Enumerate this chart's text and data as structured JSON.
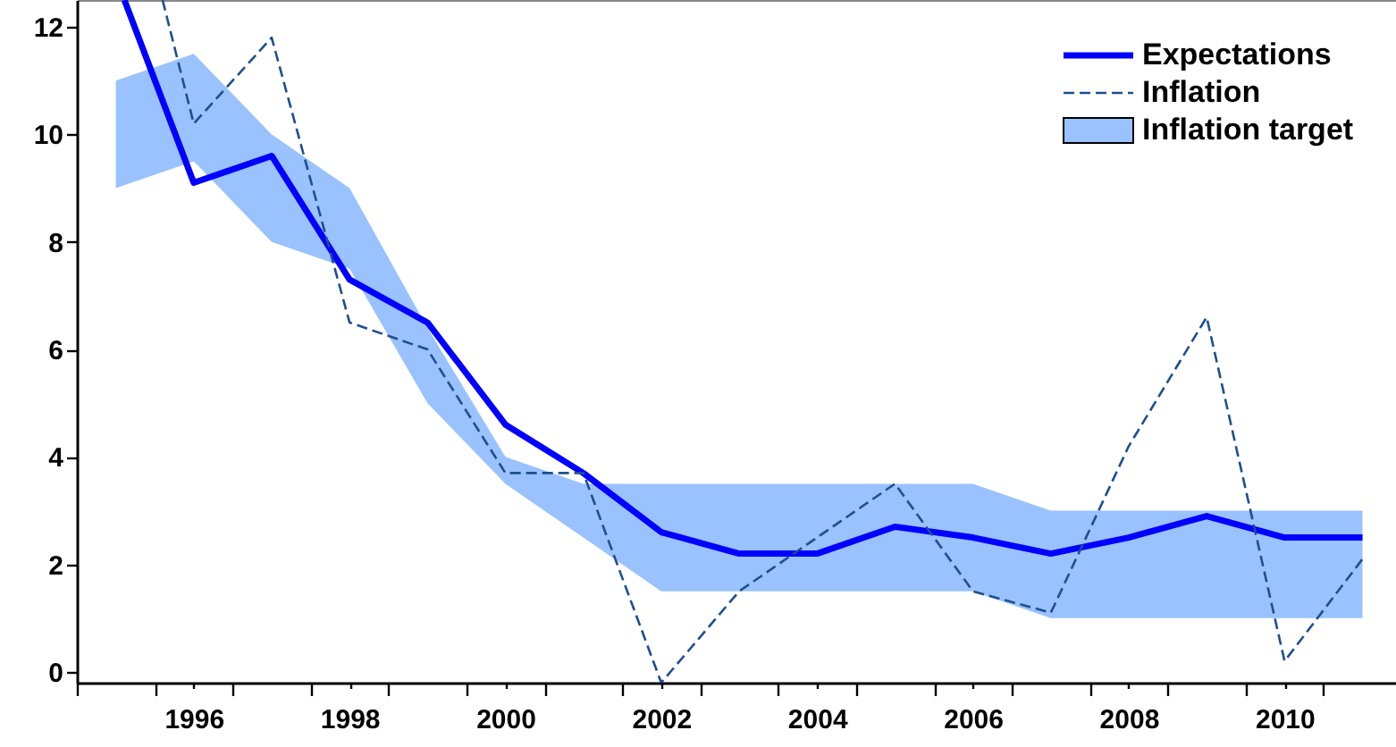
{
  "chart_data": {
    "type": "line",
    "xlim": [
      1994.5,
      2011.43
    ],
    "ylim": [
      -0.2,
      12.5
    ],
    "xticks": [
      {
        "value": 1994.5,
        "label": null
      },
      {
        "value": 1995.5,
        "label": null
      },
      1996,
      {
        "value": 1996.5,
        "label": null
      },
      {
        "value": 1997.5,
        "label": null
      },
      1998,
      {
        "value": 1998.5,
        "label": null
      },
      {
        "value": 1999.5,
        "label": null
      },
      2000,
      {
        "value": 2000.5,
        "label": null
      },
      {
        "value": 2001.5,
        "label": null
      },
      2002,
      {
        "value": 2002.5,
        "label": null
      },
      {
        "value": 2003.5,
        "label": null
      },
      2004,
      {
        "value": 2004.5,
        "label": null
      },
      {
        "value": 2005.5,
        "label": null
      },
      2006,
      {
        "value": 2006.5,
        "label": null
      },
      {
        "value": 2007.5,
        "label": null
      },
      2008,
      {
        "value": 2008.5,
        "label": null
      },
      {
        "value": 2009.5,
        "label": null
      },
      2010,
      {
        "value": 2010.5,
        "label": null
      }
    ],
    "yticks": [
      0,
      2,
      4,
      6,
      8,
      10,
      12
    ],
    "grid": false,
    "legend": "top right",
    "series": [
      {
        "name": "Expectations",
        "type": "line",
        "line_style": "solid",
        "color": "#0000ff",
        "x": [
          1995.11,
          1996,
          1997,
          1998,
          1999,
          2000,
          2001,
          2002,
          2003,
          2004,
          2005,
          2006,
          2007,
          2008,
          2009,
          2010,
          2011
        ],
        "values": [
          12.5,
          9.1,
          9.6,
          7.3,
          6.5,
          4.6,
          3.7,
          2.6,
          2.2,
          2.2,
          2.7,
          2.5,
          2.2,
          2.5,
          2.9,
          2.5,
          2.5
        ]
      },
      {
        "name": "Inflation",
        "type": "line",
        "line_style": "dashed",
        "color": "#1f4f8f",
        "x": [
          1995.6,
          1996,
          1997,
          1998,
          1999,
          2000,
          2001,
          2002,
          2003,
          2004,
          2005,
          2006,
          2007,
          2008,
          2009,
          2010,
          2011
        ],
        "values": [
          12.5,
          10.2,
          11.8,
          6.5,
          6.0,
          3.7,
          3.7,
          -0.2,
          1.5,
          2.5,
          3.5,
          1.5,
          1.1,
          4.2,
          6.6,
          0.2,
          2.1
        ]
      },
      {
        "name": "Inflation target",
        "type": "area",
        "color": "#99c2ff",
        "x": [
          1995,
          1996,
          1997,
          1998,
          1999,
          2000,
          2001,
          2002,
          2003,
          2004,
          2005,
          2006,
          2007,
          2008,
          2009,
          2010,
          2011
        ],
        "lower": [
          9,
          9.5,
          8,
          7.5,
          5,
          3.5,
          2.5,
          1.5,
          1.5,
          1.5,
          1.5,
          1.5,
          1,
          1,
          1,
          1,
          1
        ],
        "values": [
          null,
          null,
          null,
          null,
          null,
          null,
          null,
          null,
          null,
          null,
          null,
          null,
          null,
          null,
          null,
          null,
          null
        ],
        "upper": [
          11,
          11.5,
          10,
          9,
          6.4,
          4,
          3.5,
          3.5,
          3.5,
          3.5,
          3.5,
          3.5,
          3,
          3,
          3,
          3,
          3
        ]
      }
    ]
  }
}
